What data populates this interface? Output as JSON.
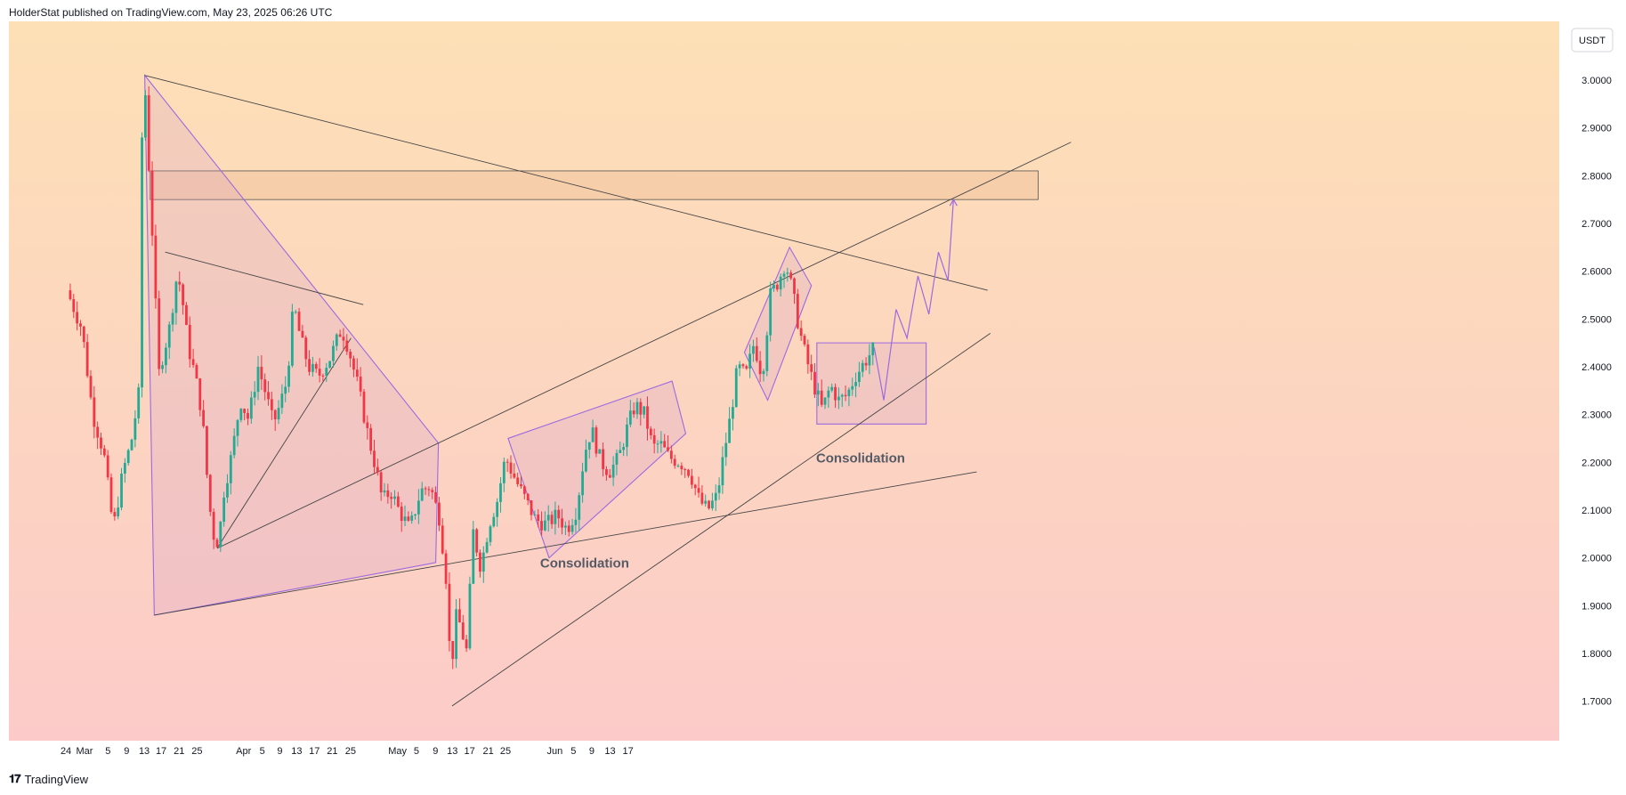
{
  "header": {
    "text": "HolderStat published on TradingView.com, May 23, 2025 06:26 UTC"
  },
  "footer": {
    "brand": "TradingView",
    "logo": "tradingview-logo-icon"
  },
  "colors": {
    "up": "#22ab94",
    "down": "#f23645",
    "bg_top": "#fde0b6",
    "bg_bottom": "#fccbc9",
    "pattern": "#9c6ae0",
    "trend": "#444444"
  },
  "chart_data": {
    "type": "candlestick",
    "title": "",
    "currency_label": "USDT",
    "xlabel": "",
    "ylabel": "",
    "ylim": [
      1.62,
      3.15
    ],
    "y_ticks": [
      "3.0000",
      "2.9000",
      "2.8000",
      "2.7000",
      "2.6000",
      "2.5000",
      "2.4000",
      "2.3000",
      "2.2000",
      "2.1000",
      "2.0000",
      "1.9000",
      "1.8000",
      "1.7000"
    ],
    "x_ticks": [
      "24",
      "Mar",
      "5",
      "9",
      "13",
      "17",
      "21",
      "25",
      "Apr",
      "5",
      "9",
      "13",
      "17",
      "21",
      "25",
      "May",
      "5",
      "9",
      "13",
      "17",
      "21",
      "25",
      "Jun",
      "5",
      "9",
      "13",
      "17"
    ],
    "grid": false,
    "annotations": [
      "Consolidation",
      "Consolidation"
    ],
    "price_path": [
      [
        -1.1,
        2.56
      ],
      [
        0.0,
        2.48
      ],
      [
        0.8,
        2.3
      ],
      [
        1.6,
        2.22
      ],
      [
        2.3,
        2.06
      ],
      [
        3.0,
        2.18
      ],
      [
        3.6,
        2.24
      ],
      [
        4.2,
        2.35
      ],
      [
        4.4,
        2.88
      ],
      [
        4.6,
        3.0
      ],
      [
        4.9,
        2.82
      ],
      [
        5.3,
        2.6
      ],
      [
        5.6,
        2.38
      ],
      [
        5.9,
        2.42
      ],
      [
        6.4,
        2.48
      ],
      [
        7.0,
        2.6
      ],
      [
        7.4,
        2.53
      ],
      [
        7.8,
        2.44
      ],
      [
        8.3,
        2.38
      ],
      [
        8.8,
        2.3
      ],
      [
        9.3,
        2.12
      ],
      [
        9.6,
        2.05
      ],
      [
        10.0,
        2.03
      ],
      [
        10.4,
        2.14
      ],
      [
        11.0,
        2.22
      ],
      [
        11.6,
        2.33
      ],
      [
        12.2,
        2.29
      ],
      [
        12.9,
        2.4
      ],
      [
        13.5,
        2.34
      ],
      [
        14.0,
        2.28
      ],
      [
        14.5,
        2.32
      ],
      [
        15.0,
        2.37
      ],
      [
        15.5,
        2.53
      ],
      [
        16.0,
        2.46
      ],
      [
        16.6,
        2.4
      ],
      [
        17.3,
        2.38
      ],
      [
        18.2,
        2.42
      ],
      [
        19.0,
        2.48
      ],
      [
        19.5,
        2.44
      ],
      [
        20.2,
        2.36
      ],
      [
        21.0,
        2.25
      ],
      [
        21.5,
        2.19
      ],
      [
        22.0,
        2.12
      ],
      [
        22.6,
        2.14
      ],
      [
        23.2,
        2.1
      ],
      [
        24.0,
        2.06
      ],
      [
        24.8,
        2.14
      ],
      [
        25.5,
        2.15
      ],
      [
        26.2,
        2.08
      ],
      [
        26.8,
        1.92
      ],
      [
        27.0,
        1.72
      ],
      [
        27.3,
        1.88
      ],
      [
        27.7,
        1.86
      ],
      [
        28.2,
        1.8
      ],
      [
        28.6,
        2.06
      ],
      [
        29.2,
        1.98
      ],
      [
        29.8,
        2.07
      ],
      [
        30.4,
        2.12
      ],
      [
        31.0,
        2.21
      ],
      [
        31.8,
        2.16
      ],
      [
        32.5,
        2.12
      ],
      [
        33.2,
        2.08
      ],
      [
        34.0,
        2.07
      ],
      [
        34.8,
        2.09
      ],
      [
        35.5,
        2.06
      ],
      [
        36.2,
        2.1
      ],
      [
        36.8,
        2.22
      ],
      [
        37.3,
        2.27
      ],
      [
        38.0,
        2.2
      ],
      [
        38.6,
        2.18
      ],
      [
        39.3,
        2.21
      ],
      [
        40.0,
        2.28
      ],
      [
        40.5,
        2.32
      ],
      [
        41.2,
        2.3
      ],
      [
        41.8,
        2.23
      ],
      [
        42.3,
        2.24
      ],
      [
        43.0,
        2.21
      ],
      [
        43.8,
        2.2
      ],
      [
        44.5,
        2.18
      ],
      [
        45.2,
        2.12
      ],
      [
        45.8,
        2.1
      ],
      [
        46.5,
        2.13
      ],
      [
        47.0,
        2.22
      ],
      [
        47.5,
        2.3
      ],
      [
        48.0,
        2.4
      ],
      [
        48.6,
        2.38
      ],
      [
        49.2,
        2.45
      ],
      [
        49.8,
        2.38
      ],
      [
        50.4,
        2.55
      ],
      [
        51.0,
        2.58
      ],
      [
        51.5,
        2.62
      ],
      [
        52.0,
        2.56
      ],
      [
        52.5,
        2.48
      ],
      [
        53.0,
        2.42
      ],
      [
        53.6,
        2.36
      ],
      [
        54.2,
        2.31
      ],
      [
        54.8,
        2.36
      ],
      [
        55.4,
        2.33
      ],
      [
        56.0,
        2.34
      ],
      [
        56.6,
        2.38
      ],
      [
        57.3,
        2.41
      ],
      [
        58.0,
        2.44
      ]
    ],
    "forecast": {
      "start": [
        58.0,
        2.44
      ],
      "points": [
        [
          58.7,
          2.33
        ],
        [
          59.6,
          2.52
        ],
        [
          60.4,
          2.46
        ],
        [
          61.2,
          2.59
        ],
        [
          62.0,
          2.51
        ],
        [
          62.7,
          2.64
        ],
        [
          63.4,
          2.58
        ],
        [
          63.8,
          2.75
        ]
      ]
    },
    "trendlines": [
      {
        "from": [
          4.6,
          3.01
        ],
        "to": [
          66.3,
          2.56
        ]
      },
      {
        "from": [
          6.1,
          2.64
        ],
        "to": [
          20.6,
          2.53
        ]
      },
      {
        "from": [
          9.9,
          2.02
        ],
        "to": [
          72.4,
          2.87
        ]
      },
      {
        "from": [
          9.9,
          2.02
        ],
        "to": [
          19.7,
          2.46
        ]
      },
      {
        "from": [
          5.3,
          1.88
        ],
        "to": [
          65.5,
          2.18
        ]
      },
      {
        "from": [
          27.1,
          1.69
        ],
        "to": [
          66.5,
          2.47
        ]
      }
    ],
    "zones": [
      {
        "label": "",
        "x0": 5.0,
        "x1": 70.0,
        "y_top": 2.81,
        "y_bottom": 2.75
      }
    ],
    "patterns": [
      {
        "name": "descending-triangle",
        "points": [
          [
            4.6,
            3.01
          ],
          [
            26.1,
            2.24
          ],
          [
            25.9,
            1.99
          ],
          [
            5.3,
            1.88
          ]
        ]
      },
      {
        "name": "rising-channel-1",
        "points": [
          [
            31.2,
            2.25
          ],
          [
            43.2,
            2.37
          ],
          [
            44.2,
            2.26
          ],
          [
            34.2,
            2.0
          ]
        ]
      },
      {
        "name": "rising-channel-2",
        "points": [
          [
            48.5,
            2.43
          ],
          [
            51.8,
            2.65
          ],
          [
            53.4,
            2.57
          ],
          [
            50.2,
            2.33
          ]
        ]
      },
      {
        "name": "consolidation-box",
        "points": [
          [
            53.8,
            2.45
          ],
          [
            61.8,
            2.45
          ],
          [
            61.8,
            2.28
          ],
          [
            53.8,
            2.28
          ]
        ]
      }
    ],
    "labels": [
      {
        "text": "Consolidation",
        "x": 36.8,
        "y": 1.98
      },
      {
        "text": "Consolidation",
        "x": 57.0,
        "y": 2.2
      }
    ]
  }
}
